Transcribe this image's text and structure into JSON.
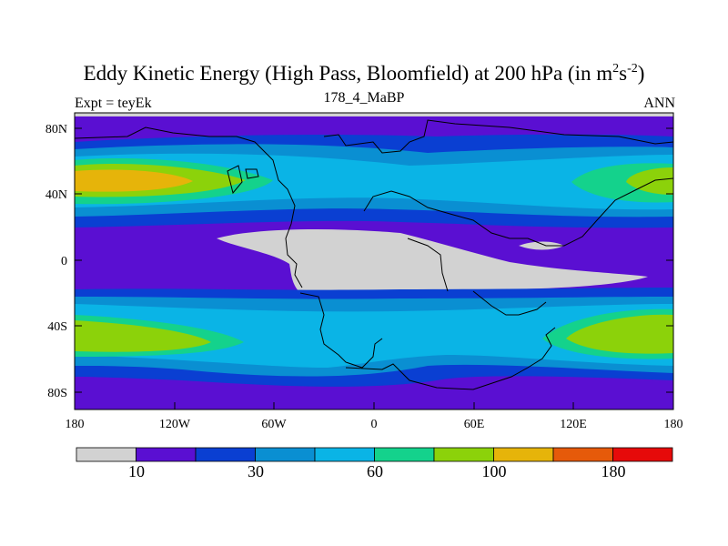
{
  "title": {
    "main": "Eddy Kinetic Energy (High Pass, Bloomfield) at 200 hPa (in m",
    "sup1": "2",
    "mid": "s",
    "sup2": "-2",
    "end": ")"
  },
  "subtitle": "178_4_MaBP",
  "left_label": "Expt = teyEk",
  "right_label": "ANN",
  "y_ticks": [
    "80N",
    "40N",
    "0",
    "40S",
    "80S"
  ],
  "x_ticks": [
    "180",
    "120W",
    "60W",
    "0",
    "60E",
    "120E",
    "180"
  ],
  "colorbar": {
    "colors": [
      "#d2d2d2",
      "#5a0fd2",
      "#0a3fd2",
      "#0a8fd2",
      "#0ab4e6",
      "#14d28c",
      "#8cd20a",
      "#e6b40a",
      "#e65a0a",
      "#e60a0a"
    ],
    "labels": [
      "10",
      "30",
      "60",
      "100",
      "180"
    ]
  },
  "map_colors": {
    "grey": "#d2d2d2",
    "purple": "#5a0fd2",
    "blue": "#0a3fd2",
    "mid_blue": "#0a8fd2",
    "cyan": "#0ab4e6",
    "teal": "#14d28c",
    "green": "#8cd20a",
    "orange": "#e6b40a"
  }
}
